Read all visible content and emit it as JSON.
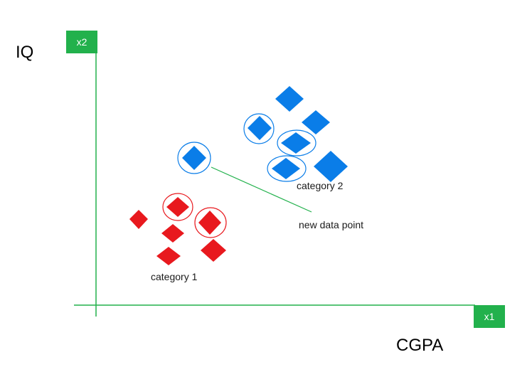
{
  "axes": {
    "y_tag": "x2",
    "x_tag": "x1",
    "y_label": "IQ",
    "x_label": "CGPA",
    "color": "#22b14c"
  },
  "labels": {
    "category1": "category 1",
    "category2": "category 2",
    "new_point": "new data point"
  },
  "colors": {
    "category1": "#e8191e",
    "category2": "#0a7de8",
    "connector": "#22b14c"
  }
}
